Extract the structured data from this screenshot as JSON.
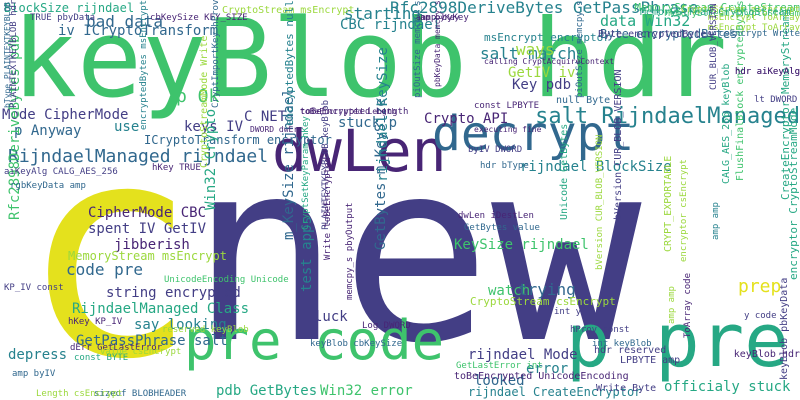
{
  "palette": {
    "yellow": "#e4e11d",
    "lime": "#9bd83d",
    "green": "#3ec36c",
    "teal": "#26a884",
    "cyan": "#26828e",
    "blue": "#31688e",
    "indigo": "#433e85",
    "purple": "#482575"
  },
  "words": [
    {
      "id": "new",
      "text": "new",
      "color": "indigo"
    },
    {
      "id": "keyblob-hdr",
      "text": "keyBlob hdr",
      "color": "green"
    },
    {
      "id": "c",
      "text": "c",
      "color": "yellow"
    },
    {
      "id": "pre-code",
      "text": "pre code",
      "color": "green"
    },
    {
      "id": "p-pre",
      "text": "p pre",
      "color": "teal"
    },
    {
      "id": "dwlen",
      "text": "dwLen",
      "color": "purple"
    },
    {
      "id": "decrypt",
      "text": "decrypt",
      "color": "blue"
    },
    {
      "id": "salt-rijndaelmanaged",
      "text": "salt RijndaelManaged",
      "color": "cyan"
    },
    {
      "id": "rijndaelmanaged-rijndael",
      "text": "RijndaelManaged rijndael",
      "color": "blue"
    },
    {
      "id": "rfc2898derivebytes-getpassphrase",
      "text": "Rfc2898DeriveBytes GetPassPhrase",
      "color": "cyan"
    },
    {
      "id": "bad-data",
      "text": "bad data",
      "color": "blue"
    },
    {
      "id": "blocksize-rijndael",
      "text": "BlockSize rijndael",
      "color": "teal"
    },
    {
      "id": "iv-icryptotransform",
      "text": "iv ICryptoTransform",
      "color": "blue"
    },
    {
      "id": "starting",
      "text": "starting",
      "color": "cyan"
    },
    {
      "id": "salt-match",
      "text": "salt match",
      "color": "cyan"
    },
    {
      "id": "data-win32",
      "text": "data Win32",
      "color": "teal"
    },
    {
      "id": "cbc-rijndael",
      "text": "CBC rijndael",
      "color": "cyan"
    },
    {
      "id": "ways",
      "text": "ways",
      "color": "lime"
    },
    {
      "id": "getiv-iv",
      "text": "GetIV iv",
      "color": "lime"
    },
    {
      "id": "key-pdb",
      "text": "Key pdb",
      "color": "indigo"
    },
    {
      "id": "p-ok",
      "text": "p Ok",
      "color": "green"
    },
    {
      "id": "mode-ciphermode",
      "text": "Mode CipherMode",
      "color": "indigo"
    },
    {
      "id": "p-anyway",
      "text": "p Anyway",
      "color": "blue"
    },
    {
      "id": "use",
      "text": "use",
      "color": "cyan"
    },
    {
      "id": "keys-iv",
      "text": "keys IV",
      "color": "indigo"
    },
    {
      "id": "c-net",
      "text": "C NET",
      "color": "indigo"
    },
    {
      "id": "stuck-p",
      "text": "stuck p",
      "color": "blue"
    },
    {
      "id": "crypto-api",
      "text": "Crypto API",
      "color": "purple"
    },
    {
      "id": "icryptotransform-encryptor",
      "text": "ICryptoTransform encryptor",
      "color": "blue"
    },
    {
      "id": "rijndael-blocksize",
      "text": "rijndael BlockSize",
      "color": "cyan"
    },
    {
      "id": "ciphermode-cbc",
      "text": "CipherMode CBC",
      "color": "purple"
    },
    {
      "id": "spent-iv-getiv",
      "text": "spent IV GetIV",
      "color": "indigo"
    },
    {
      "id": "jibberish",
      "text": "jibberish",
      "color": "purple"
    },
    {
      "id": "code-pre",
      "text": "code pre",
      "color": "blue"
    },
    {
      "id": "string-encrypted",
      "text": "string encrypted",
      "color": "indigo"
    },
    {
      "id": "rijndaelmanaged-class",
      "text": "RijndaelManaged Class",
      "color": "teal"
    },
    {
      "id": "say-looking",
      "text": "say looking",
      "color": "cyan"
    },
    {
      "id": "getpassphrase-salt",
      "text": "GetPassPhrase salt",
      "color": "blue"
    },
    {
      "id": "depress",
      "text": "depress",
      "color": "cyan"
    },
    {
      "id": "keysize-rijndael",
      "text": "KeySize rijndael",
      "color": "green"
    },
    {
      "id": "watch",
      "text": "watch",
      "color": "green"
    },
    {
      "id": "trying",
      "text": "trying",
      "color": "blue"
    },
    {
      "id": "luck",
      "text": "luck",
      "color": "indigo"
    },
    {
      "id": "rijndael-mode",
      "text": "rijndael Mode",
      "color": "indigo"
    },
    {
      "id": "error",
      "text": "error",
      "color": "cyan"
    },
    {
      "id": "looked",
      "text": "looked",
      "color": "blue"
    },
    {
      "id": "pdb-getbytes",
      "text": "pdb GetBytes",
      "color": "teal"
    },
    {
      "id": "win32-error",
      "text": "Win32 error",
      "color": "green"
    },
    {
      "id": "officialy-stuck",
      "text": "officialy stuck",
      "color": "teal"
    },
    {
      "id": "prep",
      "text": "prep",
      "color": "yellow"
    },
    {
      "id": "memorystream-msencrypt",
      "text": "MemoryStream msEncrypt",
      "color": "lime"
    },
    {
      "id": "getbytes-m-keysize",
      "text": "GetBytes m_KeySize",
      "color": "blue"
    },
    {
      "id": "rijndael-keysize",
      "text": "rijndael KeySize",
      "color": "cyan"
    },
    {
      "id": "test-apps",
      "text": "test apps",
      "color": "cyan"
    },
    {
      "id": "m-keysize-rijndael",
      "text": "m_KeySize rijndael",
      "color": "blue"
    },
    {
      "id": "win32-crypto",
      "text": "Win32 Crypto",
      "color": "teal"
    },
    {
      "id": "rfc2898derivebytes-pdb",
      "text": "Rfc2898DeriveBytes pdb",
      "color": "green"
    },
    {
      "id": "byte-encryptedbytes",
      "text": "Byte encryptedBytes",
      "color": "blue"
    },
    {
      "id": "cryptostream-msencrypt",
      "text": "CryptoStream msEncrypt",
      "color": "lime"
    },
    {
      "id": "msencrypt-encryptor",
      "text": "msEncrypt encryptor",
      "color": "cyan"
    },
    {
      "id": "memorystream-cryptostream",
      "text": "MemoryStream CryptoStream",
      "color": "green"
    },
    {
      "id": "rijndael-createencryptor",
      "text": "rijndael CreateEncryptor",
      "color": "cyan"
    },
    {
      "id": "tobeencrypted-unicodeencoding",
      "text": "toBeEncrypted UnicodeEncoding",
      "color": "purple"
    },
    {
      "id": "write-byte",
      "text": "Write Byte",
      "color": "indigo"
    },
    {
      "id": "encrypted-bytes-null",
      "text": "encryptedBytes null",
      "color": "cyan"
    },
    {
      "id": "cryptostream-csencrypt",
      "text": "CryptoStream csEncrypt",
      "color": "lime"
    },
    {
      "id": "unicode-getbytes",
      "text": "Unicode GetBytes",
      "color": "teal"
    },
    {
      "id": "plaintextkeyblob-keyblob",
      "text": "PLAINTEXTKEYBLOB keyBlob",
      "color": "indigo"
    },
    {
      "id": "bversion-cur-blob-version",
      "text": "bVersion CUR_BLOB_VERSION",
      "color": "indigo"
    },
    {
      "id": "createencryptor-memorystream",
      "text": "CreateEncryptor MemoryStream",
      "color": "teal"
    },
    {
      "id": "encryptor-cryptostreammode",
      "text": "encryptor CryptoStreamMode",
      "color": "teal"
    },
    {
      "id": "flushfinalblock-encryptedbytes",
      "text": "FlushFinalBlock encryptedBytes",
      "color": "green"
    },
    {
      "id": "calg-aes-256-keyblob",
      "text": "CALG_AES_256 keyBlob",
      "color": "teal"
    },
    {
      "id": "keyblob-pbkeydata",
      "text": "keyBlob pbKeyData",
      "color": "indigo"
    },
    {
      "id": "cryptostreammode-write",
      "text": "CryptoStreamMode Write",
      "color": "lime"
    },
    {
      "id": "rgbkeydata-amp",
      "text": "rgbKeyData amp",
      "color": "blue"
    },
    {
      "id": "aikeyalg-calg-aes-256",
      "text": "aiKeyAlg CALG_AES_256",
      "color": "indigo"
    },
    {
      "id": "iv-dword",
      "text": "byIV DWORD",
      "color": "indigo"
    },
    {
      "id": "hdr-btype",
      "text": "hdr bType",
      "color": "blue"
    },
    {
      "id": "log-dword",
      "text": "Log DWORD",
      "color": "purple"
    },
    {
      "id": "hprov-const",
      "text": "hProv const",
      "color": "indigo"
    },
    {
      "id": "hdr-reserved",
      "text": "hdr reserved",
      "color": "indigo"
    },
    {
      "id": "lpbyte-amp",
      "text": "LPBYTE amp",
      "color": "indigo"
    },
    {
      "id": "dwlen-idestlen",
      "text": "dwLen iDestLen",
      "color": "purple"
    },
    {
      "id": "getbytes-value",
      "text": "GetBytes value",
      "color": "blue"
    },
    {
      "id": "tobeencrypted-length",
      "text": "toBeEncrypted Length",
      "color": "purple"
    },
    {
      "id": "const-lpbyte",
      "text": "const LPBYTE",
      "color": "purple"
    },
    {
      "id": "keyblob-cbkeysize",
      "text": "keyBlob cbKeySize",
      "color": "blue"
    },
    {
      "id": "getlasterror-int",
      "text": "GetLastError int",
      "color": "green"
    },
    {
      "id": "null-byte",
      "text": "null Byte",
      "color": "blue"
    },
    {
      "id": "unicodeencoding-unicode",
      "text": "UnicodeEncoding Unicode",
      "color": "green"
    },
    {
      "id": "keyblob-hdr-small",
      "text": "keyBlob hdr",
      "color": "purple"
    },
    {
      "id": "y-code",
      "text": "y code",
      "color": "indigo"
    },
    {
      "id": "lt-dword",
      "text": "lt DWORD",
      "color": "indigo"
    },
    {
      "id": "hdr-aikeyalg",
      "text": "hdr aiKeyAlg",
      "color": "purple"
    },
    {
      "id": "toarray-code",
      "text": "ToArray code",
      "color": "purple"
    },
    {
      "id": "const-byte",
      "text": "const BYTE",
      "color": "teal"
    },
    {
      "id": "kp-iv-const",
      "text": "KP_IV const",
      "color": "indigo"
    },
    {
      "id": "hkey-kp-iv",
      "text": "hKey KP_IV",
      "color": "purple"
    },
    {
      "id": "derr-getlasterror",
      "text": "dErr GetLastError",
      "color": "purple"
    },
    {
      "id": "value-csencrypt",
      "text": "value csEncrypt",
      "color": "lime"
    },
    {
      "id": "amp-byiv",
      "text": "amp byIV",
      "color": "blue"
    },
    {
      "id": "sizeof-blobheader",
      "text": "sizeof BLOBHEADER",
      "color": "blue"
    },
    {
      "id": "length-csencrypt",
      "text": "Length csEncrypt",
      "color": "lime"
    },
    {
      "id": "true-pbydata",
      "text": "TRUE pbyData",
      "color": "indigo"
    },
    {
      "id": "cbkeysize-key-size",
      "text": "cbKeySize KEY_SIZE",
      "color": "purple"
    },
    {
      "id": "hkey-true",
      "text": "hKey TRUE",
      "color": "purple"
    },
    {
      "id": "int-y",
      "text": "int y",
      "color": "indigo"
    },
    {
      "id": "dword-derr",
      "text": "DWORD dwErr",
      "color": "purple"
    },
    {
      "id": "msencrypt-toarray",
      "text": "msEncrypt ToArray",
      "color": "lime"
    },
    {
      "id": "memorystream-cryptostream-sm",
      "text": "MemoryStream CryptoStream",
      "color": "green"
    },
    {
      "id": "amp-bykey",
      "text": "amp byKey",
      "color": "purple"
    },
    {
      "id": "executing-fine",
      "text": "executing fine",
      "color": "purple"
    },
    {
      "id": "amp-amp",
      "text": "amp amp",
      "color": "cyan"
    },
    {
      "id": "pbkeydata-memcpy-s",
      "text": "pbKeyData memcpy_s",
      "color": "purple"
    },
    {
      "id": "tobeencrypted",
      "text": "toBeEncrypted Length",
      "color": "purple"
    },
    {
      "id": "pulen-memcpy-s",
      "text": "piOutSize memcpy_s",
      "color": "blue"
    },
    {
      "id": "calling-cryptacquire",
      "text": "calling CryptAcquireContext",
      "color": "purple"
    },
    {
      "id": "cryptsetkeyparam",
      "text": "CryptSetKeyParam hKey",
      "color": "teal"
    },
    {
      "id": "write-tobeencrypted",
      "text": "Write toBeEncrypted",
      "color": "purple"
    },
    {
      "id": "memcpy-s-pbyoutput",
      "text": "memcpy_s pbyOutput",
      "color": "purple"
    },
    {
      "id": "reserved-keyblob",
      "text": "reserved keyBlob",
      "color": "lime"
    },
    {
      "id": "int-keyblob",
      "text": "int keyBlob",
      "color": "blue"
    },
    {
      "id": "amp-amp-2",
      "text": "amp amp",
      "color": "lime"
    },
    {
      "id": "encryptor-csencrypt",
      "text": "encryptor csEncrypt",
      "color": "lime"
    },
    {
      "id": "crypt-exportable",
      "text": "CRYPT_EXPORTABLE",
      "color": "lime"
    },
    {
      "id": "bversion-cur",
      "text": "bVersion CUR_BLOB_VERSION",
      "color": "lime"
    },
    {
      "id": "cryptimportkey-hprov",
      "text": "CryptImportKey hProv",
      "color": "blue"
    },
    {
      "id": "encryptedbytes-msencrypt",
      "text": "encryptedBytes msEncrypt",
      "color": "cyan"
    },
    {
      "id": "getpassphrase-string",
      "text": "piOutSize memcpy_s",
      "color": "blue"
    },
    {
      "id": "plaintextkeyblob-hdr",
      "text": "PLAINTEXTKEYBLOB hdr",
      "color": "indigo"
    },
    {
      "id": "amp-byiv-2",
      "text": "bType PLAINTEXTKEYBLOB",
      "color": "blue"
    },
    {
      "id": "cryptstream-msencrypt",
      "text": "CryptoStream msEncrypt",
      "color": "lime"
    },
    {
      "id": "memorystream-cryptostream-top",
      "text": "MemoryStream CryptoStream",
      "color": "teal"
    },
    {
      "id": "msencrypt-toarray-2",
      "text": "msEncrypt ToArray",
      "color": "lime"
    },
    {
      "id": "cswrite-write",
      "text": "csEncrypt Write",
      "color": "blue"
    },
    {
      "id": "byte-encryptedbytes-2",
      "text": "Byte encryptedBytes",
      "color": "indigo"
    },
    {
      "id": "amp-bykey-2",
      "text": "amp byKey",
      "color": "purple"
    },
    {
      "id": "cur-blob-version",
      "text": "CUR_BLOB_VERSION",
      "color": "indigo"
    },
    {
      "id": "hdr-aikeyalg-2",
      "text": "hdr aiKeyAlg",
      "color": "purple"
    }
  ]
}
